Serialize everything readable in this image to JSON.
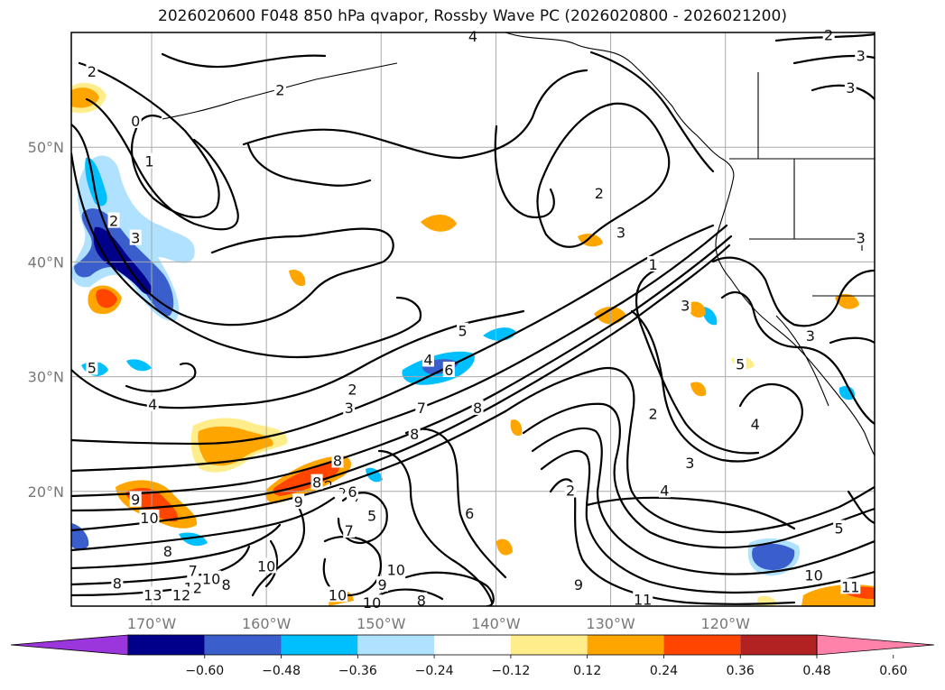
{
  "title": "2026020600 F048 850 hPa qvapor, Rossby Wave PC (2026020800 - 2026021200)",
  "map": {
    "lat_range": [
      10,
      60
    ],
    "lon_range": [
      -177,
      -107
    ],
    "lat_ticks": [
      {
        "v": 50,
        "label": "50°N"
      },
      {
        "v": 40,
        "label": "40°N"
      },
      {
        "v": 30,
        "label": "30°N"
      },
      {
        "v": 20,
        "label": "20°N"
      }
    ],
    "lon_ticks": [
      {
        "v": -170,
        "label": "170°W"
      },
      {
        "v": -160,
        "label": "160°W"
      },
      {
        "v": -150,
        "label": "150°W"
      },
      {
        "v": -140,
        "label": "140°W"
      },
      {
        "v": -130,
        "label": "130°W"
      },
      {
        "v": -120,
        "label": "120°W"
      }
    ],
    "grid": true,
    "coastlines": true
  },
  "contour_labels": [
    {
      "lon": -175.2,
      "lat": 56.6,
      "text": "2"
    },
    {
      "lon": -171.4,
      "lat": 52.3,
      "text": "0"
    },
    {
      "lon": -170.2,
      "lat": 48.8,
      "text": "1"
    },
    {
      "lon": -173.3,
      "lat": 43.6,
      "text": "2"
    },
    {
      "lon": -171.4,
      "lat": 42.1,
      "text": "3"
    },
    {
      "lon": -175.2,
      "lat": 30.8,
      "text": "5"
    },
    {
      "lon": -169.9,
      "lat": 27.6,
      "text": "4"
    },
    {
      "lon": -152.5,
      "lat": 28.9,
      "text": "2"
    },
    {
      "lon": -152.8,
      "lat": 27.3,
      "text": "3"
    },
    {
      "lon": -145.9,
      "lat": 31.5,
      "text": "4"
    },
    {
      "lon": -144.1,
      "lat": 30.6,
      "text": "6"
    },
    {
      "lon": -142.9,
      "lat": 34.0,
      "text": "5"
    },
    {
      "lon": -146.5,
      "lat": 27.3,
      "text": "7"
    },
    {
      "lon": -141.6,
      "lat": 27.3,
      "text": "8"
    },
    {
      "lon": -147.1,
      "lat": 25.0,
      "text": "8"
    },
    {
      "lon": -153.8,
      "lat": 22.7,
      "text": "8"
    },
    {
      "lon": -155.6,
      "lat": 20.8,
      "text": "8"
    },
    {
      "lon": -152.5,
      "lat": 20.0,
      "text": "6"
    },
    {
      "lon": -150.8,
      "lat": 17.9,
      "text": "5"
    },
    {
      "lon": -152.8,
      "lat": 16.6,
      "text": "7"
    },
    {
      "lon": -157.2,
      "lat": 19.1,
      "text": "9"
    },
    {
      "lon": -160.0,
      "lat": 13.5,
      "text": "10"
    },
    {
      "lon": -171.4,
      "lat": 19.3,
      "text": "9"
    },
    {
      "lon": -170.2,
      "lat": 17.7,
      "text": "10"
    },
    {
      "lon": -168.6,
      "lat": 14.8,
      "text": "8"
    },
    {
      "lon": -166.4,
      "lat": 13.1,
      "text": "7"
    },
    {
      "lon": -164.8,
      "lat": 12.4,
      "text": "10"
    },
    {
      "lon": -166.4,
      "lat": 11.6,
      "text": "12"
    },
    {
      "lon": -167.4,
      "lat": 11.0,
      "text": "12"
    },
    {
      "lon": -169.9,
      "lat": 11.0,
      "text": "13"
    },
    {
      "lon": -173.0,
      "lat": 12.0,
      "text": "8"
    },
    {
      "lon": -163.5,
      "lat": 11.9,
      "text": "8"
    },
    {
      "lon": -153.8,
      "lat": 11.0,
      "text": "10"
    },
    {
      "lon": -148.7,
      "lat": 13.2,
      "text": "10"
    },
    {
      "lon": -149.9,
      "lat": 11.9,
      "text": "9"
    },
    {
      "lon": -150.8,
      "lat": 10.3,
      "text": "10"
    },
    {
      "lon": -146.5,
      "lat": 10.5,
      "text": "8"
    },
    {
      "lon": -142.3,
      "lat": 18.1,
      "text": "6"
    },
    {
      "lon": -133.5,
      "lat": 20.1,
      "text": "2"
    },
    {
      "lon": -132.8,
      "lat": 11.9,
      "text": "9"
    },
    {
      "lon": -127.2,
      "lat": 10.6,
      "text": "11"
    },
    {
      "lon": -131.0,
      "lat": 46.0,
      "text": "2"
    },
    {
      "lon": -129.1,
      "lat": 42.6,
      "text": "3"
    },
    {
      "lon": -126.3,
      "lat": 39.8,
      "text": "1"
    },
    {
      "lon": -123.5,
      "lat": 36.2,
      "text": "3"
    },
    {
      "lon": -126.3,
      "lat": 26.8,
      "text": "2"
    },
    {
      "lon": -123.1,
      "lat": 22.5,
      "text": "3"
    },
    {
      "lon": -125.3,
      "lat": 20.1,
      "text": "4"
    },
    {
      "lon": -117.4,
      "lat": 25.9,
      "text": "4"
    },
    {
      "lon": -118.7,
      "lat": 31.1,
      "text": "5"
    },
    {
      "lon": -112.6,
      "lat": 33.6,
      "text": "3"
    },
    {
      "lon": -110.1,
      "lat": 16.8,
      "text": "5"
    },
    {
      "lon": -112.3,
      "lat": 12.7,
      "text": "10"
    },
    {
      "lon": -109.1,
      "lat": 11.7,
      "text": "11"
    },
    {
      "lon": -111.0,
      "lat": 59.8,
      "text": "2"
    },
    {
      "lon": -108.2,
      "lat": 58.0,
      "text": "3"
    },
    {
      "lon": -109.1,
      "lat": 55.2,
      "text": "3"
    },
    {
      "lon": -108.2,
      "lat": 42.1,
      "text": "3"
    },
    {
      "lon": -158.8,
      "lat": 55.0,
      "text": "2"
    },
    {
      "lon": -142.0,
      "lat": 59.7,
      "text": "4"
    }
  ],
  "colorbar": {
    "ticks": [
      "−0.60",
      "−0.48",
      "−0.36",
      "−0.24",
      "−0.12",
      "0.12",
      "0.24",
      "0.36",
      "0.48",
      "0.60"
    ],
    "colors": [
      "#9b35dc",
      "#00008b",
      "#3a5fcd",
      "#00bfff",
      "#b0e2ff",
      "#ffffff",
      "#ffec8b",
      "#ffa500",
      "#ff4500",
      "#b22222",
      "#ff82ab"
    ],
    "extend": "both"
  }
}
